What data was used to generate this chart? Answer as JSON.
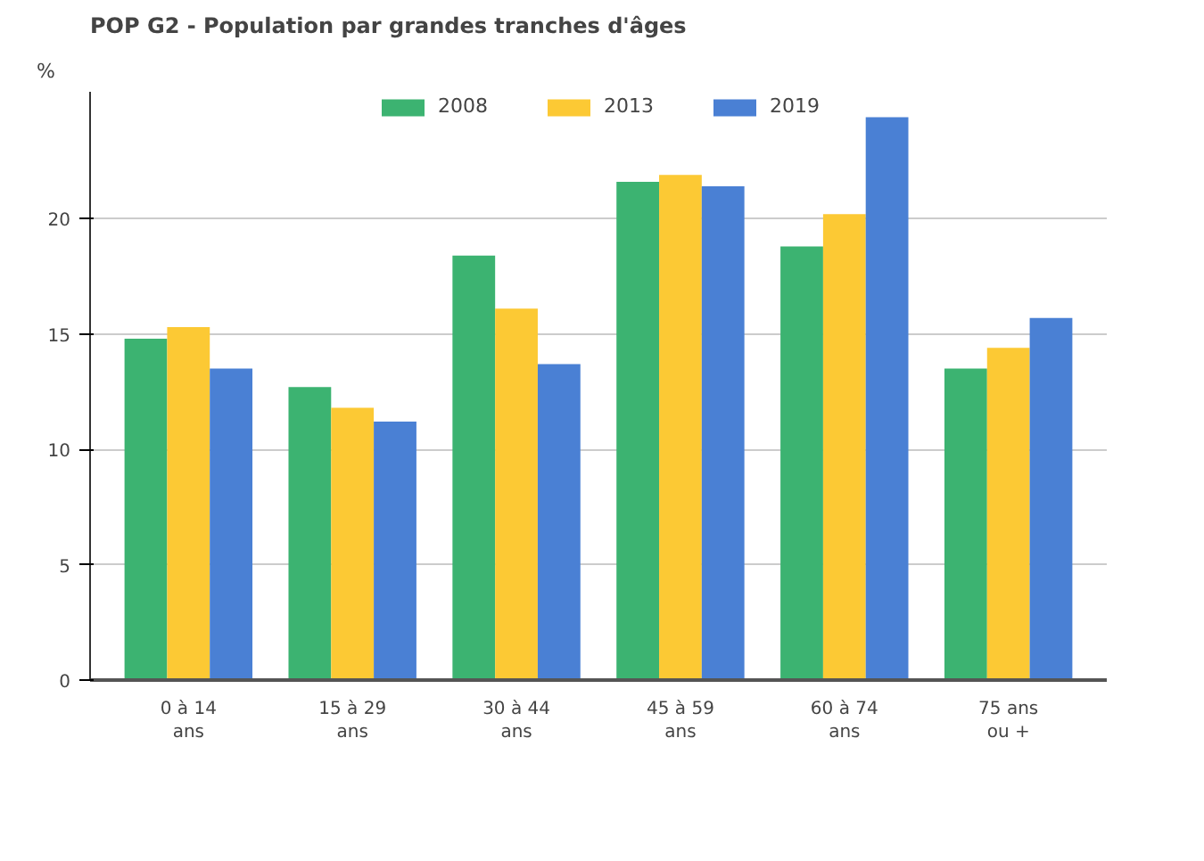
{
  "chart_data": {
    "type": "bar",
    "title": "POP G2 - Population par grandes tranches d'âges",
    "ylabel": "%",
    "categories": [
      "0 à 14\nans",
      "15 à 29\nans",
      "30 à 44\nans",
      "45 à 59\nans",
      "60 à 74\nans",
      "75 ans\nou +"
    ],
    "series": [
      {
        "name": "2008",
        "color": "#3cb371",
        "values": [
          14.8,
          12.7,
          18.4,
          21.6,
          18.8,
          13.5
        ]
      },
      {
        "name": "2013",
        "color": "#fcc934",
        "values": [
          15.3,
          11.8,
          16.1,
          21.9,
          20.2,
          14.4
        ]
      },
      {
        "name": "2019",
        "color": "#4a80d4",
        "values": [
          13.5,
          11.2,
          13.7,
          21.4,
          24.4,
          15.7
        ]
      }
    ],
    "ylim": [
      0,
      25.5
    ],
    "yticks": [
      0,
      5,
      10,
      15,
      20
    ],
    "grid": "y",
    "legend": "top"
  }
}
